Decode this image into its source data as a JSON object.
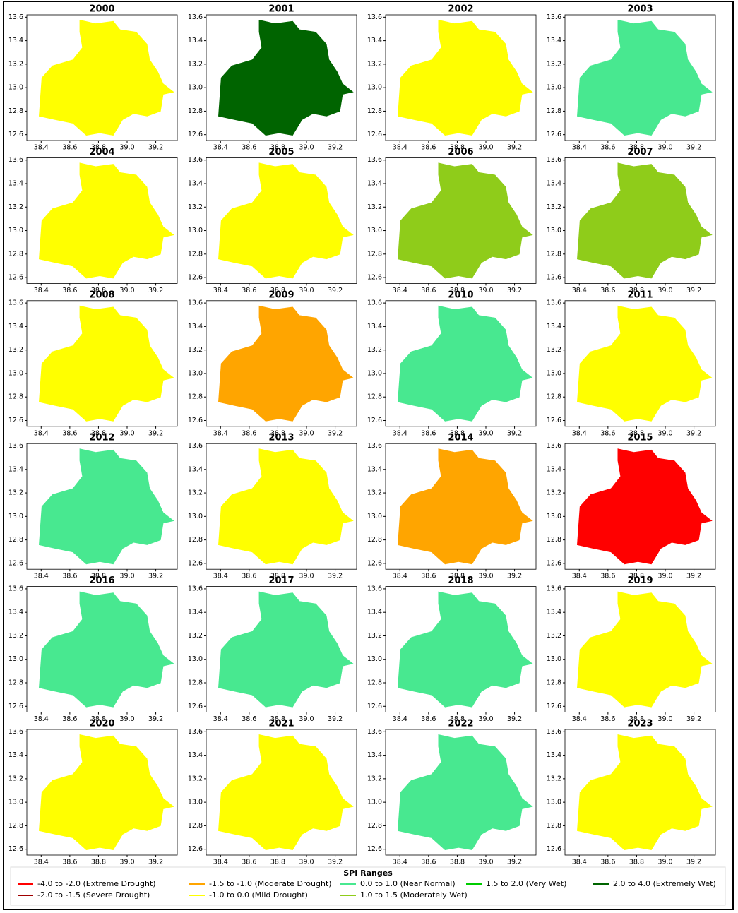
{
  "panels": [
    {
      "title": "2000",
      "color": "#ffff00"
    },
    {
      "title": "2001",
      "color": "#006400"
    },
    {
      "title": "2002",
      "color": "#ffff00"
    },
    {
      "title": "2003",
      "color": "#48e890"
    },
    {
      "title": "2004",
      "color": "#ffff00"
    },
    {
      "title": "2005",
      "color": "#ffff00"
    },
    {
      "title": "2006",
      "color": "#8fcc1a"
    },
    {
      "title": "2007",
      "color": "#8fcc1a"
    },
    {
      "title": "2008",
      "color": "#ffff00"
    },
    {
      "title": "2009",
      "color": "#ffa500"
    },
    {
      "title": "2010",
      "color": "#48e890"
    },
    {
      "title": "2011",
      "color": "#ffff00"
    },
    {
      "title": "2012",
      "color": "#48e890"
    },
    {
      "title": "2013",
      "color": "#ffff00"
    },
    {
      "title": "2014",
      "color": "#ffa500"
    },
    {
      "title": "2015",
      "color": "#ff0000"
    },
    {
      "title": "2016",
      "color": "#48e890"
    },
    {
      "title": "2017",
      "color": "#48e890"
    },
    {
      "title": "2018",
      "color": "#48e890"
    },
    {
      "title": "2019",
      "color": "#ffff00"
    },
    {
      "title": "2020",
      "color": "#ffff00"
    },
    {
      "title": "2021",
      "color": "#ffff00"
    },
    {
      "title": "2022",
      "color": "#48e890"
    },
    {
      "title": "2023",
      "color": "#ffff00"
    }
  ],
  "axes": {
    "xlim": [
      38.3,
      39.35
    ],
    "xticks": [
      38.4,
      38.6,
      38.8,
      {
        "value": 39,
        "label": "39.0"
      },
      39.2
    ],
    "ylim": [
      12.55,
      13.62
    ],
    "yticks": [
      12.6,
      12.8,
      {
        "value": 13,
        "label": "13.0"
      },
      13.2,
      13.4,
      13.6
    ]
  },
  "legend": {
    "title": "SPI Ranges",
    "items": [
      {
        "label": "-4.0 to -2.0 (Extreme Drought)",
        "color": "#ff0000"
      },
      {
        "label": "-2.0 to -1.5 (Severe Drought)",
        "color": "#a00000"
      },
      {
        "label": "-1.5 to -1.0 (Moderate Drought)",
        "color": "#ffa500"
      },
      {
        "label": "-1.0 to 0.0 (Mild Drought)",
        "color": "#ffff00"
      },
      {
        "label": "0.0 to 1.0 (Near Normal)",
        "color": "#48e890"
      },
      {
        "label": "1.0 to 1.5 (Moderately Wet)",
        "color": "#8fcc1a"
      },
      {
        "label": "1.5 to 2.0 (Very Wet)",
        "color": "#00cc00"
      },
      {
        "label": "2.0 to 4.0 (Extremely Wet)",
        "color": "#006400"
      }
    ]
  }
}
